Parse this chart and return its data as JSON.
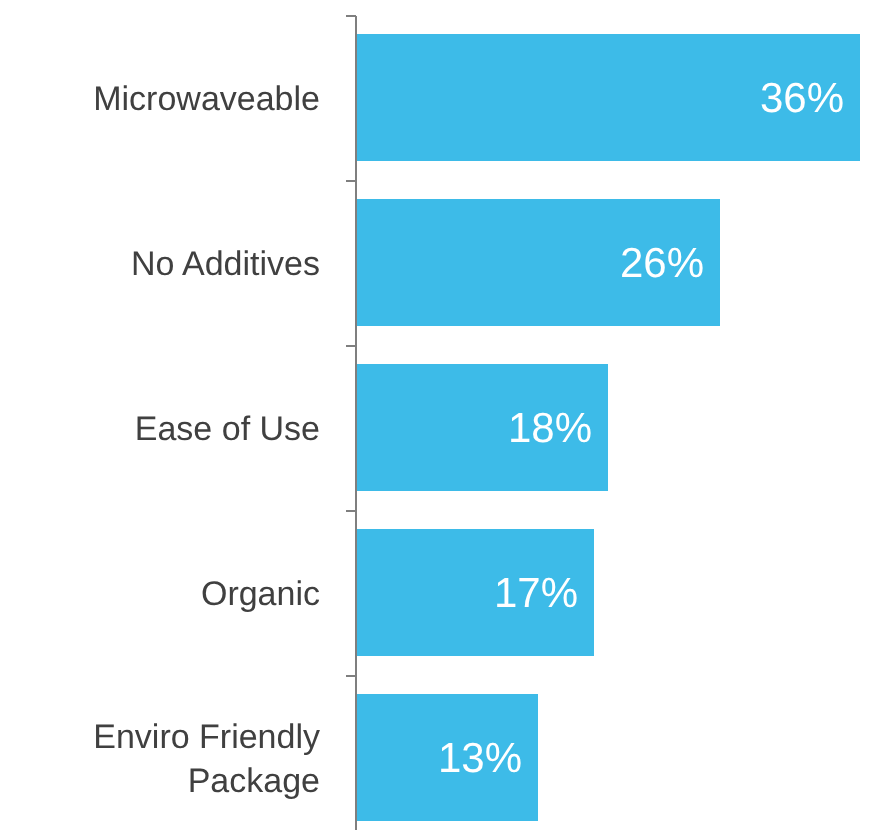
{
  "chart_data": {
    "type": "bar",
    "orientation": "horizontal",
    "categories": [
      "Microwaveable",
      "No Additives",
      "Ease of Use",
      "Organic",
      "Enviro Friendly Package"
    ],
    "values": [
      36,
      26,
      18,
      17,
      13
    ],
    "value_labels": [
      "36%",
      "26%",
      "18%",
      "17%",
      "13%"
    ],
    "color": "#3dbbe8"
  }
}
